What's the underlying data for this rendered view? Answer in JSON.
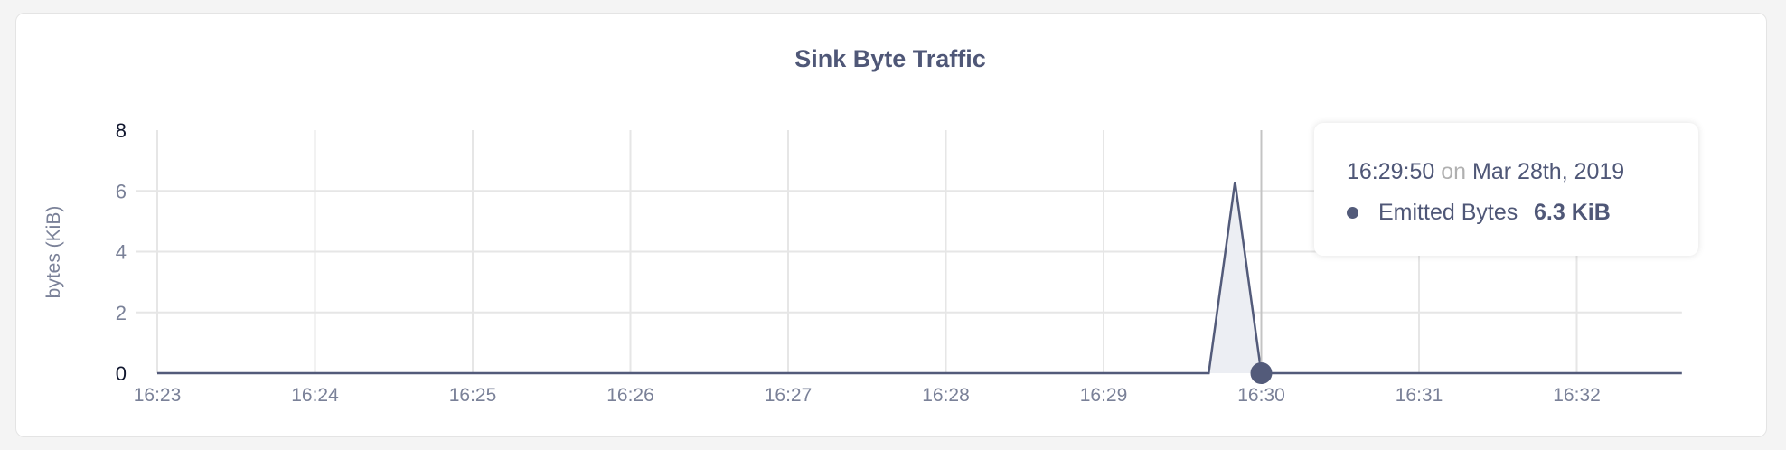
{
  "chart_data": {
    "type": "area",
    "title": "Sink Byte Traffic",
    "ylabel": "bytes (KiB)",
    "xlabel": "",
    "ylim": [
      0,
      8
    ],
    "yticks": [
      "0",
      "2",
      "4",
      "6",
      "8"
    ],
    "xticks": [
      "16:23",
      "16:24",
      "16:25",
      "16:26",
      "16:27",
      "16:28",
      "16:29",
      "16:30",
      "16:31",
      "16:32"
    ],
    "xlim": [
      "16:23:00",
      "16:32:40"
    ],
    "grid": true,
    "series": [
      {
        "name": "Emitted Bytes",
        "color": "#535b7a",
        "fill": "#eceef3",
        "points": [
          [
            "16:23:00",
            0
          ],
          [
            "16:29:40",
            0
          ],
          [
            "16:29:50",
            6.3
          ],
          [
            "16:30:00",
            0
          ],
          [
            "16:32:40",
            0
          ]
        ]
      }
    ],
    "hover_time": "16:30:00"
  },
  "tooltip": {
    "time": "16:29:50",
    "on": "on",
    "date": "Mar 28th, 2019",
    "series_name": "Emitted Bytes",
    "value": "6.3 KiB"
  }
}
